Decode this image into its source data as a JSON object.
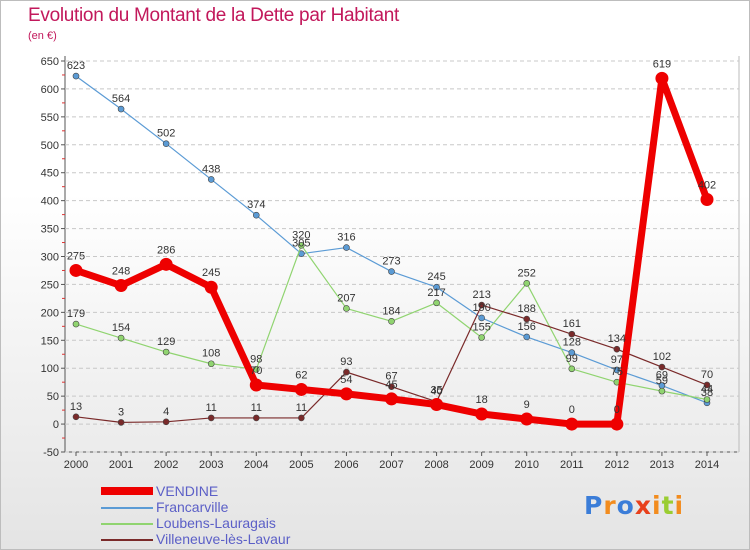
{
  "title": "Evolution du Montant de la Dette par Habitant",
  "unit_label": "(en €)",
  "logo": {
    "text": "Proxiti",
    "letter_colors": [
      "#3b7dd8",
      "#f28c1e",
      "#3b7dd8",
      "#e8401c",
      "#f28c1e",
      "#9acd32",
      "#f28c1e"
    ]
  },
  "chart_data": {
    "type": "line",
    "title": "Evolution du Montant de la Dette par Habitant",
    "ylabel": "(en €)",
    "xlabel": "",
    "ylim": [
      -50,
      650
    ],
    "y_ticks": [
      "-50",
      "0",
      "50",
      "100",
      "150",
      "200",
      "250",
      "300",
      "350",
      "400",
      "450",
      "500",
      "550",
      "600",
      "650"
    ],
    "x": [
      "2000",
      "2001",
      "2002",
      "2003",
      "2004",
      "2005",
      "2006",
      "2007",
      "2008",
      "2009",
      "2010",
      "2011",
      "2012",
      "2013",
      "2014"
    ],
    "grid": "horizontal dashed",
    "legend_position": "bottom-left",
    "series": [
      {
        "name": "VENDINE",
        "color": "#ee0000",
        "values": [
          275,
          248,
          286,
          245,
          70,
          62,
          54,
          45,
          35,
          18,
          9,
          0,
          0,
          619,
          402
        ],
        "labels": [
          "275",
          "248",
          "286",
          "245",
          "70",
          "62",
          "54",
          "45",
          "35",
          "18",
          "9",
          "0",
          "0",
          "619",
          "402"
        ]
      },
      {
        "name": "Francarville",
        "color": "#5b9bd5",
        "values": [
          623,
          564,
          502,
          438,
          374,
          305,
          316,
          273,
          245,
          190,
          156,
          128,
          97,
          69,
          38
        ],
        "labels": [
          "623",
          "564",
          "502",
          "438",
          "374",
          "305",
          "316",
          "273",
          "245",
          "190",
          "156",
          "128",
          "97",
          "69",
          "38"
        ]
      },
      {
        "name": "Loubens-Lauragais",
        "color": "#90d470",
        "values": [
          179,
          154,
          129,
          108,
          98,
          320,
          207,
          184,
          217,
          155,
          252,
          99,
          75,
          59,
          44
        ],
        "labels": [
          "179",
          "154",
          "129",
          "108",
          "98",
          "320",
          "207",
          "184",
          "217",
          "155",
          "252",
          "99",
          "75",
          "59",
          "44"
        ]
      },
      {
        "name": "Villeneuve-lès-Lavaur",
        "color": "#7a2a2a",
        "values": [
          13,
          3,
          4,
          11,
          11,
          11,
          93,
          67,
          40,
          213,
          188,
          161,
          134,
          102,
          70
        ],
        "labels": [
          "13",
          "3",
          "4",
          "11",
          "11",
          "11",
          "93",
          "67",
          "40",
          "213",
          "188",
          "161",
          "134",
          "102",
          "70"
        ]
      }
    ]
  }
}
